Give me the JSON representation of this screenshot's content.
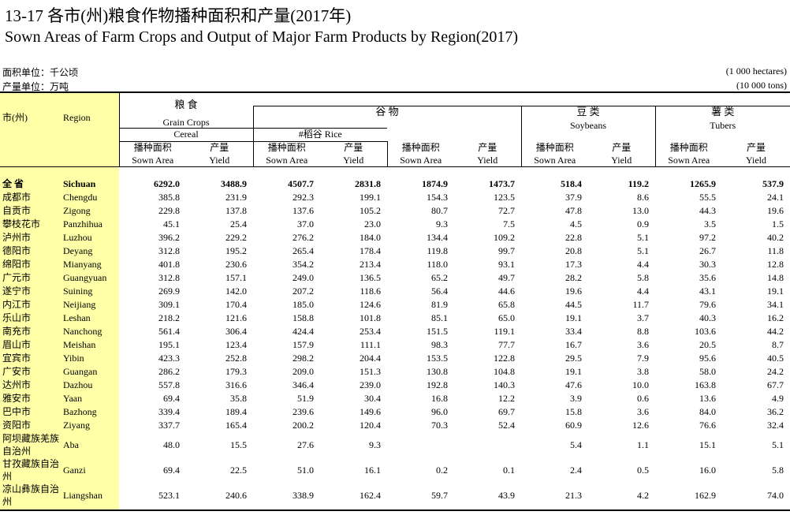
{
  "header": {
    "title_zh": "13-17 各市(州)粮食作物播种面积和产量(2017年)",
    "title_en": "Sown Areas of Farm Crops and Output of Major Farm Products by Region(2017)",
    "area_unit_zh": "面积单位：千公顷",
    "output_unit_zh": "产量单位：万吨",
    "area_unit_en": "(1 000 hectares)",
    "output_unit_en": "(10 000 tons)"
  },
  "table": {
    "col_city": "市(州)",
    "col_region": "Region",
    "grain_zh": "粮 食",
    "grain_en": "Grain Crops",
    "cereal_zh": "谷 物",
    "cereal_en": "Cereal",
    "rice_label": "#稻谷 Rice",
    "soy_zh": "豆 类",
    "soy_en": "Soybeans",
    "tuber_zh": "薯 类",
    "tuber_en": "Tubers",
    "area_zh": "播种面积",
    "area_en": "Sown Area",
    "yield_zh": "产量",
    "yield_en": "Yield",
    "rows": [
      {
        "city": "全 省",
        "region": "Sichuan",
        "v": [
          "6292.0",
          "3488.9",
          "4507.7",
          "2831.8",
          "1874.9",
          "1473.7",
          "518.4",
          "119.2",
          "1265.9",
          "537.9"
        ]
      },
      {
        "city": "成都市",
        "region": "Chengdu",
        "v": [
          "385.8",
          "231.9",
          "292.3",
          "199.1",
          "154.3",
          "123.5",
          "37.9",
          "8.6",
          "55.5",
          "24.1"
        ]
      },
      {
        "city": "自贡市",
        "region": "Zigong",
        "v": [
          "229.8",
          "137.8",
          "137.6",
          "105.2",
          "80.7",
          "72.7",
          "47.8",
          "13.0",
          "44.3",
          "19.6"
        ]
      },
      {
        "city": "攀枝花市",
        "region": "Panzhihua",
        "v": [
          "45.1",
          "25.4",
          "37.0",
          "23.0",
          "9.3",
          "7.5",
          "4.5",
          "0.9",
          "3.5",
          "1.5"
        ]
      },
      {
        "city": "泸州市",
        "region": "Luzhou",
        "v": [
          "396.2",
          "229.2",
          "276.2",
          "184.0",
          "134.4",
          "109.2",
          "22.8",
          "5.1",
          "97.2",
          "40.2"
        ]
      },
      {
        "city": "德阳市",
        "region": "Deyang",
        "v": [
          "312.8",
          "195.2",
          "265.4",
          "178.4",
          "119.8",
          "99.7",
          "20.8",
          "5.1",
          "26.7",
          "11.8"
        ]
      },
      {
        "city": "绵阳市",
        "region": "Mianyang",
        "v": [
          "401.8",
          "230.6",
          "354.2",
          "213.4",
          "118.0",
          "93.1",
          "17.3",
          "4.4",
          "30.3",
          "12.8"
        ]
      },
      {
        "city": "广元市",
        "region": "Guangyuan",
        "v": [
          "312.8",
          "157.1",
          "249.0",
          "136.5",
          "65.2",
          "49.7",
          "28.2",
          "5.8",
          "35.6",
          "14.8"
        ]
      },
      {
        "city": "遂宁市",
        "region": "Suining",
        "v": [
          "269.9",
          "142.0",
          "207.2",
          "118.6",
          "56.4",
          "44.6",
          "19.6",
          "4.4",
          "43.1",
          "19.1"
        ]
      },
      {
        "city": "内江市",
        "region": "Neijiang",
        "v": [
          "309.1",
          "170.4",
          "185.0",
          "124.6",
          "81.9",
          "65.8",
          "44.5",
          "11.7",
          "79.6",
          "34.1"
        ]
      },
      {
        "city": "乐山市",
        "region": "Leshan",
        "v": [
          "218.2",
          "121.6",
          "158.8",
          "101.8",
          "85.1",
          "65.0",
          "19.1",
          "3.7",
          "40.3",
          "16.2"
        ]
      },
      {
        "city": "南充市",
        "region": "Nanchong",
        "v": [
          "561.4",
          "306.4",
          "424.4",
          "253.4",
          "151.5",
          "119.1",
          "33.4",
          "8.8",
          "103.6",
          "44.2"
        ]
      },
      {
        "city": "眉山市",
        "region": "Meishan",
        "v": [
          "195.1",
          "123.4",
          "157.9",
          "111.1",
          "98.3",
          "77.7",
          "16.7",
          "3.6",
          "20.5",
          "8.7"
        ]
      },
      {
        "city": "宜宾市",
        "region": "Yibin",
        "v": [
          "423.3",
          "252.8",
          "298.2",
          "204.4",
          "153.5",
          "122.8",
          "29.5",
          "7.9",
          "95.6",
          "40.5"
        ]
      },
      {
        "city": "广安市",
        "region": "Guangan",
        "v": [
          "286.2",
          "179.3",
          "209.0",
          "151.3",
          "130.8",
          "104.8",
          "19.1",
          "3.8",
          "58.0",
          "24.2"
        ]
      },
      {
        "city": "达州市",
        "region": "Dazhou",
        "v": [
          "557.8",
          "316.6",
          "346.4",
          "239.0",
          "192.8",
          "140.3",
          "47.6",
          "10.0",
          "163.8",
          "67.7"
        ]
      },
      {
        "city": "雅安市",
        "region": "Yaan",
        "v": [
          "69.4",
          "35.8",
          "51.9",
          "30.4",
          "16.8",
          "12.2",
          "3.9",
          "0.6",
          "13.6",
          "4.9"
        ]
      },
      {
        "city": "巴中市",
        "region": "Bazhong",
        "v": [
          "339.4",
          "189.4",
          "239.6",
          "149.6",
          "96.0",
          "69.7",
          "15.8",
          "3.6",
          "84.0",
          "36.2"
        ]
      },
      {
        "city": "资阳市",
        "region": "Ziyang",
        "v": [
          "337.7",
          "165.4",
          "200.2",
          "120.4",
          "70.3",
          "52.4",
          "60.9",
          "12.6",
          "76.6",
          "32.4"
        ]
      },
      {
        "city": "阿坝藏族羌族自治州",
        "region": "Aba",
        "v": [
          "48.0",
          "15.5",
          "27.6",
          "9.3",
          "",
          "",
          "5.4",
          "1.1",
          "15.1",
          "5.1"
        ]
      },
      {
        "city": "甘孜藏族自治州",
        "region": "Ganzi",
        "v": [
          "69.4",
          "22.5",
          "51.0",
          "16.1",
          "0.2",
          "0.1",
          "2.4",
          "0.5",
          "16.0",
          "5.8"
        ]
      },
      {
        "city": "凉山彝族自治州",
        "region": "Liangshan",
        "v": [
          "523.1",
          "240.6",
          "338.9",
          "162.4",
          "59.7",
          "43.9",
          "21.3",
          "4.2",
          "162.9",
          "74.0"
        ]
      }
    ]
  }
}
